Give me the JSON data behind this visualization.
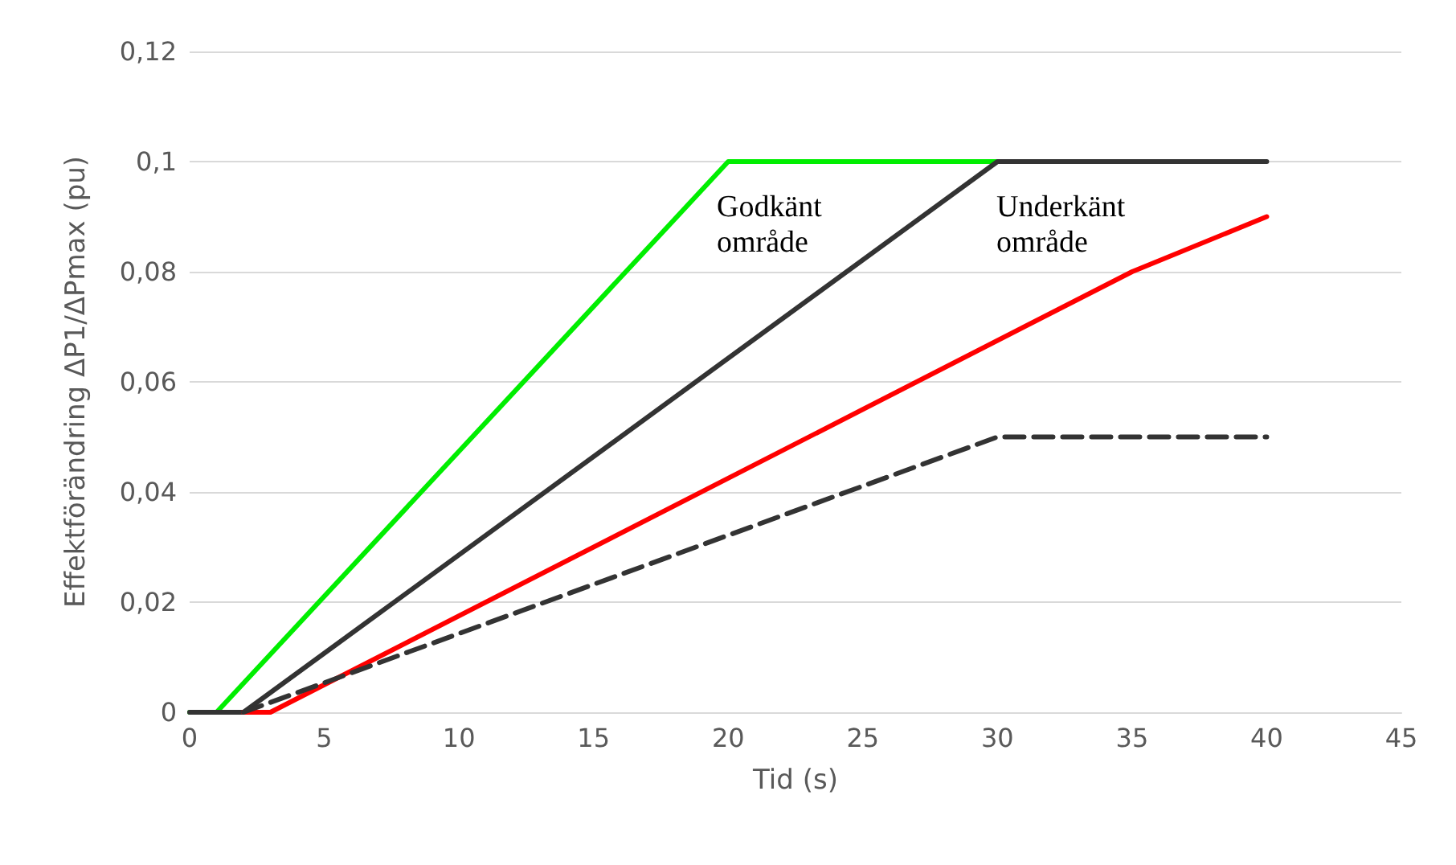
{
  "chart_data": {
    "type": "line",
    "xlabel": "Tid (s)",
    "ylabel": "Effektförändring ΔP1/ΔPmax (pu)",
    "xlim": [
      0,
      45
    ],
    "xticks": [
      0,
      5,
      10,
      15,
      20,
      25,
      30,
      35,
      40,
      45
    ],
    "ylim": [
      0,
      0.12
    ],
    "yticks": [
      0,
      {
        "value": 0.02,
        "label": "0,02"
      },
      {
        "value": 0.04,
        "label": "0,04"
      },
      {
        "value": 0.06,
        "label": "0,06"
      },
      {
        "value": 0.08,
        "label": "0,08"
      },
      {
        "value": 0.1,
        "label": "0,1"
      },
      {
        "value": 0.12,
        "label": "0,12"
      }
    ],
    "grid": "y",
    "marker": "none",
    "series": [
      {
        "color": "#00ee00",
        "x": [
          0,
          1,
          20,
          30
        ],
        "values": [
          0,
          0,
          0.1,
          0.1
        ]
      },
      {
        "color": "#333333",
        "x": [
          0,
          2,
          30,
          40
        ],
        "values": [
          0,
          0,
          0.1,
          0.1
        ]
      },
      {
        "color": "#ff0000",
        "x": [
          2,
          3,
          35,
          40
        ],
        "values": [
          0,
          0,
          0.08,
          0.09
        ]
      },
      {
        "color": "#333333",
        "line_style": "dashed",
        "x": [
          2,
          30,
          40
        ],
        "values": [
          0,
          0.05,
          0.05
        ]
      }
    ],
    "annotations": [
      "Godkänt\nområde",
      "Underkänt\nområde"
    ]
  }
}
